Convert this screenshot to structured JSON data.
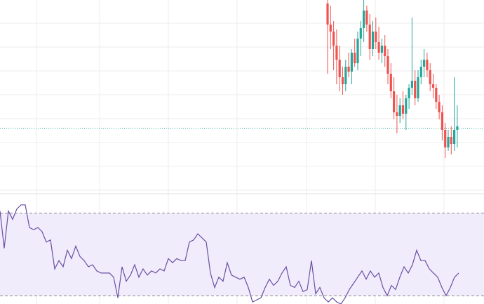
{
  "chart_data": [
    {
      "type": "candlestick",
      "ylim": [
        0,
        270
      ],
      "up_color": "#26a69a",
      "down_color": "#ef5350",
      "price_line": 87,
      "price_line_color": "#26a69a",
      "grid": true,
      "candles": [
        [
          265,
          270,
          165,
          235
        ],
        [
          235,
          262,
          200,
          225
        ],
        [
          225,
          240,
          170,
          205
        ],
        [
          205,
          228,
          150,
          185
        ],
        [
          185,
          205,
          140,
          160
        ],
        [
          160,
          175,
          135,
          150
        ],
        [
          150,
          185,
          140,
          175
        ],
        [
          175,
          195,
          160,
          168
        ],
        [
          168,
          200,
          150,
          195
        ],
        [
          195,
          215,
          175,
          180
        ],
        [
          180,
          225,
          170,
          215
        ],
        [
          215,
          240,
          190,
          230
        ],
        [
          230,
          270,
          210,
          255
        ],
        [
          255,
          262,
          225,
          235
        ],
        [
          235,
          250,
          185,
          200
        ],
        [
          200,
          240,
          190,
          225
        ],
        [
          225,
          245,
          200,
          210
        ],
        [
          210,
          232,
          185,
          195
        ],
        [
          195,
          215,
          180,
          205
        ],
        [
          205,
          220,
          175,
          190
        ],
        [
          190,
          200,
          150,
          165
        ],
        [
          165,
          180,
          130,
          140
        ],
        [
          140,
          160,
          100,
          110
        ],
        [
          110,
          135,
          80,
          105
        ],
        [
          105,
          130,
          95,
          120
        ],
        [
          120,
          140,
          100,
          108
        ],
        [
          108,
          135,
          85,
          130
        ],
        [
          130,
          150,
          115,
          145
        ],
        [
          145,
          245,
          135,
          155
        ],
        [
          155,
          170,
          120,
          130
        ],
        [
          130,
          170,
          125,
          160
        ],
        [
          160,
          185,
          150,
          175
        ],
        [
          175,
          200,
          160,
          185
        ],
        [
          185,
          195,
          160,
          170
        ],
        [
          170,
          180,
          140,
          150
        ],
        [
          150,
          165,
          130,
          145
        ],
        [
          145,
          150,
          115,
          125
        ],
        [
          125,
          135,
          100,
          110
        ],
        [
          110,
          120,
          70,
          85
        ],
        [
          85,
          95,
          45,
          60
        ],
        [
          60,
          85,
          55,
          75
        ],
        [
          75,
          90,
          50,
          65
        ],
        [
          65,
          160,
          55,
          85
        ],
        [
          85,
          120,
          60,
          90
        ]
      ]
    },
    {
      "type": "line",
      "ylim": [
        26,
        78
      ],
      "color": "#6a4fa3",
      "band": [
        30,
        70
      ],
      "band_color": "#f1ecfb",
      "grid": true,
      "values": [
        71,
        53,
        71,
        67,
        72,
        74,
        74,
        63,
        62,
        63,
        61,
        56,
        57,
        43,
        47,
        44,
        52,
        48,
        54,
        49,
        47,
        44,
        45,
        42,
        41,
        41,
        41,
        39,
        29,
        44,
        37,
        40,
        45,
        39,
        43,
        40,
        42,
        41,
        43,
        42,
        48,
        46,
        48,
        47,
        47,
        56,
        57,
        60,
        58,
        56,
        41,
        34,
        39,
        37,
        46,
        40,
        39,
        38,
        39,
        34,
        27,
        28,
        29,
        34,
        38,
        35,
        37,
        41,
        44,
        35,
        34,
        37,
        32,
        33,
        47,
        31,
        34,
        29,
        27,
        29,
        27,
        26,
        29,
        33,
        36,
        39,
        42,
        38,
        42,
        39,
        41,
        34,
        30,
        35,
        33,
        39,
        44,
        41,
        45,
        52,
        47,
        47,
        43,
        41,
        39,
        34,
        30,
        34,
        39,
        41
      ]
    }
  ]
}
